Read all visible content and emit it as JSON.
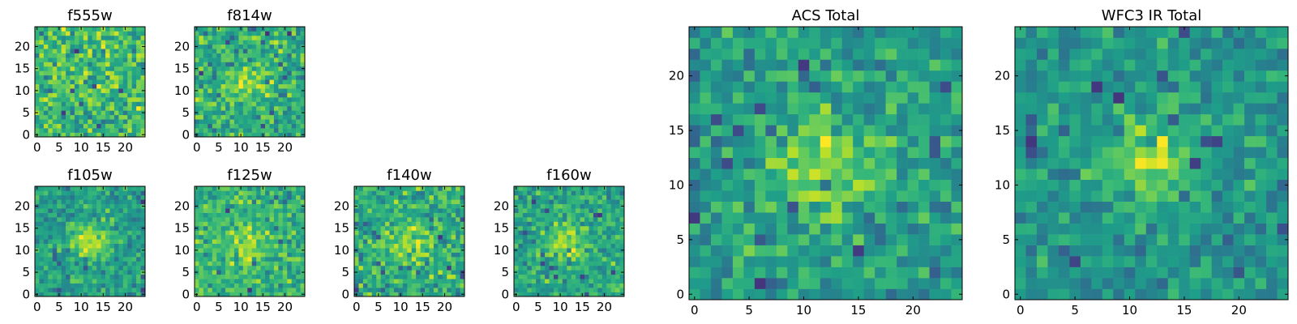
{
  "figure": {
    "description_layout": "six small cutouts on the left (two rows), two large totals on the right",
    "colormap": "viridis"
  },
  "chart_data": [
    {
      "type": "heatmap",
      "title": "f555w",
      "size": 25,
      "seed": 11,
      "blob": 0.0,
      "xticks": [
        0,
        5,
        10,
        15,
        20
      ],
      "yticks": [
        0,
        5,
        10,
        15,
        20
      ],
      "xlim": [
        0,
        25
      ],
      "ylim": [
        0,
        25
      ]
    },
    {
      "type": "heatmap",
      "title": "f814w",
      "size": 25,
      "seed": 23,
      "blob": 0.35,
      "xticks": [
        0,
        5,
        10,
        15,
        20
      ],
      "yticks": [
        0,
        5,
        10,
        15,
        20
      ],
      "xlim": [
        0,
        25
      ],
      "ylim": [
        0,
        25
      ]
    },
    {
      "type": "heatmap",
      "title": "f105w",
      "size": 25,
      "seed": 37,
      "blob": 0.55,
      "xticks": [
        0,
        5,
        10,
        15,
        20
      ],
      "yticks": [
        0,
        5,
        10,
        15,
        20
      ],
      "xlim": [
        0,
        25
      ],
      "ylim": [
        0,
        25
      ]
    },
    {
      "type": "heatmap",
      "title": "f125w",
      "size": 25,
      "seed": 41,
      "blob": 0.35,
      "xticks": [
        0,
        5,
        10,
        15,
        20
      ],
      "yticks": [
        0,
        5,
        10,
        15,
        20
      ],
      "xlim": [
        0,
        25
      ],
      "ylim": [
        0,
        25
      ]
    },
    {
      "type": "heatmap",
      "title": "f140w",
      "size": 25,
      "seed": 53,
      "blob": 0.3,
      "xticks": [
        0,
        5,
        10,
        15,
        20
      ],
      "yticks": [
        0,
        5,
        10,
        15,
        20
      ],
      "xlim": [
        0,
        25
      ],
      "ylim": [
        0,
        25
      ]
    },
    {
      "type": "heatmap",
      "title": "f160w",
      "size": 25,
      "seed": 67,
      "blob": 0.45,
      "xticks": [
        0,
        5,
        10,
        15,
        20
      ],
      "yticks": [
        0,
        5,
        10,
        15,
        20
      ],
      "xlim": [
        0,
        25
      ],
      "ylim": [
        0,
        25
      ]
    },
    {
      "type": "heatmap",
      "title": "ACS Total",
      "size": 25,
      "seed": 79,
      "blob": 0.5,
      "xticks": [
        0,
        5,
        10,
        15,
        20
      ],
      "yticks": [
        0,
        5,
        10,
        15,
        20
      ],
      "xlim": [
        0,
        25
      ],
      "ylim": [
        0,
        25
      ]
    },
    {
      "type": "heatmap",
      "title": "WFC3 IR Total",
      "size": 25,
      "seed": 97,
      "blob": 0.65,
      "xticks": [
        0,
        5,
        10,
        15,
        20
      ],
      "yticks": [
        0,
        5,
        10,
        15,
        20
      ],
      "xlim": [
        0,
        25
      ],
      "ylim": [
        0,
        25
      ]
    }
  ]
}
